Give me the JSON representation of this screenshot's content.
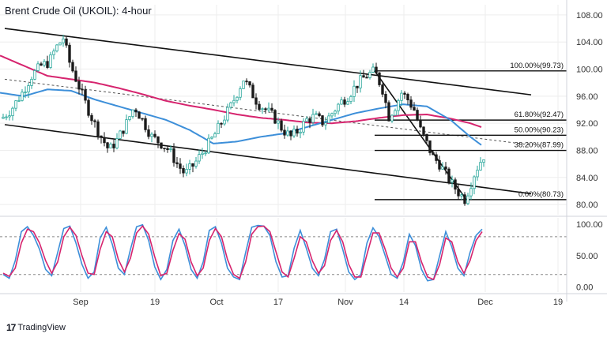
{
  "header": {
    "title": "Brent Crude Oil (UKOIL): 4-hour"
  },
  "footer": {
    "brand": "TradingView"
  },
  "colors": {
    "up": "#26a69a",
    "down": "#1a1a1a",
    "candle_body_up": "#ffffff",
    "sma_fast": "#3d8fd9",
    "sma_slow": "#d6246e",
    "stoch_k": "#3d8fd9",
    "stoch_d": "#d6246e",
    "trend": "#111111",
    "fib": "#111111",
    "grid": "#eeeeee",
    "axis_text": "#333333"
  },
  "chart_data": [
    {
      "type": "candlestick",
      "title": "Brent Crude Oil (UKOIL): 4-hour",
      "ylim": [
        78.5,
        109.5
      ],
      "y_ticks": [
        "108.00",
        "104.00",
        "100.00",
        "96.00",
        "92.00",
        "88.00",
        "84.00",
        "80.00"
      ],
      "x_ticks": [
        "Sep",
        "19",
        "Oct",
        "17",
        "Nov",
        "14",
        "Dec",
        "19"
      ],
      "grid": true,
      "price_path": [
        [
          0,
          92.5
        ],
        [
          14,
          94
        ],
        [
          28,
          96.5
        ],
        [
          40,
          99
        ],
        [
          52,
          100.5
        ],
        [
          62,
          101
        ],
        [
          70,
          103
        ],
        [
          80,
          104.6
        ],
        [
          88,
          101
        ],
        [
          98,
          98
        ],
        [
          108,
          95
        ],
        [
          118,
          92.3
        ],
        [
          128,
          90
        ],
        [
          138,
          88
        ],
        [
          148,
          89.5
        ],
        [
          160,
          92
        ],
        [
          170,
          94.5
        ],
        [
          180,
          92.5
        ],
        [
          192,
          90
        ],
        [
          204,
          89
        ],
        [
          214,
          88
        ],
        [
          224,
          86
        ],
        [
          234,
          84.5
        ],
        [
          246,
          86
        ],
        [
          258,
          88
        ],
        [
          270,
          90
        ],
        [
          282,
          92.5
        ],
        [
          292,
          94.5
        ],
        [
          300,
          96.5
        ],
        [
          308,
          98.5
        ],
        [
          316,
          97
        ],
        [
          326,
          95
        ],
        [
          336,
          94
        ],
        [
          346,
          93
        ],
        [
          358,
          91
        ],
        [
          368,
          90
        ],
        [
          378,
          91
        ],
        [
          388,
          92.5
        ],
        [
          398,
          93
        ],
        [
          410,
          92
        ],
        [
          420,
          93.5
        ],
        [
          430,
          95
        ],
        [
          440,
          96
        ],
        [
          450,
          97.5
        ],
        [
          458,
          98.5
        ],
        [
          466,
          99.2
        ],
        [
          474,
          99.7
        ],
        [
          484,
          97
        ],
        [
          492,
          93
        ],
        [
          500,
          94.5
        ],
        [
          508,
          96.5
        ],
        [
          516,
          95.5
        ],
        [
          524,
          94
        ],
        [
          532,
          91
        ],
        [
          540,
          89
        ],
        [
          548,
          87
        ],
        [
          556,
          86
        ],
        [
          564,
          84.5
        ],
        [
          572,
          83
        ],
        [
          580,
          81.8
        ],
        [
          588,
          80.8
        ],
        [
          594,
          82.5
        ],
        [
          600,
          84.5
        ],
        [
          606,
          86
        ],
        [
          612,
          87.2
        ]
      ],
      "sma_fast_path": [
        [
          0,
          96.5
        ],
        [
          30,
          96
        ],
        [
          60,
          97
        ],
        [
          90,
          96.8
        ],
        [
          120,
          95.5
        ],
        [
          150,
          94.5
        ],
        [
          180,
          93.5
        ],
        [
          210,
          92.5
        ],
        [
          240,
          91
        ],
        [
          270,
          89
        ],
        [
          300,
          89.3
        ],
        [
          330,
          90
        ],
        [
          360,
          90.5
        ],
        [
          390,
          91.5
        ],
        [
          420,
          92.5
        ],
        [
          450,
          93.5
        ],
        [
          480,
          94.2
        ],
        [
          510,
          94.8
        ],
        [
          540,
          94.5
        ],
        [
          570,
          92.5
        ],
        [
          595,
          90
        ],
        [
          610,
          88.7
        ]
      ],
      "sma_slow_path": [
        [
          0,
          102
        ],
        [
          30,
          100.5
        ],
        [
          60,
          99
        ],
        [
          90,
          98.5
        ],
        [
          120,
          98
        ],
        [
          150,
          97.2
        ],
        [
          180,
          96.3
        ],
        [
          210,
          95.3
        ],
        [
          240,
          94.6
        ],
        [
          270,
          94
        ],
        [
          300,
          93.3
        ],
        [
          330,
          92.8
        ],
        [
          360,
          92.5
        ],
        [
          390,
          92.1
        ],
        [
          420,
          92
        ],
        [
          450,
          92.3
        ],
        [
          480,
          92.8
        ],
        [
          510,
          93.2
        ],
        [
          540,
          93.3
        ],
        [
          570,
          92.7
        ],
        [
          595,
          92
        ],
        [
          610,
          91.4
        ]
      ],
      "trendlines": [
        {
          "name": "channel-upper",
          "from": [
            6,
            106
          ],
          "to": [
            672,
            96.2
          ],
          "style": "solid"
        },
        {
          "name": "channel-lower",
          "from": [
            6,
            91.8
          ],
          "to": [
            672,
            81.6
          ],
          "style": "solid"
        },
        {
          "name": "channel-mid",
          "from": [
            6,
            98.5
          ],
          "to": [
            672,
            88.8
          ],
          "style": "dashed"
        },
        {
          "name": "fib-diagonal",
          "from": [
            474,
            99.73
          ],
          "to": [
            590,
            80.73
          ],
          "style": "solid"
        }
      ],
      "fibonacci": {
        "x_start": 474,
        "x_end": 717,
        "levels": [
          {
            "label": "100.00%(99.73)",
            "value": 99.73
          },
          {
            "label": "61.80%(92.47)",
            "value": 92.47
          },
          {
            "label": "50.00%(90.23)",
            "value": 90.23
          },
          {
            "label": "38.20%(87.99)",
            "value": 87.99
          },
          {
            "label": "0.00%(80.73)",
            "value": 80.73
          }
        ]
      }
    },
    {
      "type": "line",
      "title": "",
      "ylim": [
        -8,
        110
      ],
      "y_ticks": [
        "100.00",
        "50.00",
        "0.00"
      ],
      "y_tick_values": [
        100,
        50,
        0
      ],
      "dashed_levels": [
        80,
        20
      ],
      "series": [
        {
          "key": "stoch_k",
          "values": [
            20,
            14,
            42,
            88,
            96,
            82,
            60,
            28,
            18,
            55,
            93,
            97,
            70,
            36,
            14,
            24,
            78,
            95,
            68,
            30,
            20,
            60,
            96,
            99,
            74,
            32,
            12,
            28,
            74,
            92,
            66,
            28,
            14,
            40,
            90,
            96,
            70,
            30,
            16,
            12,
            55,
            95,
            98,
            97,
            82,
            40,
            16,
            18,
            62,
            90,
            62,
            30,
            18,
            44,
            88,
            92,
            60,
            24,
            12,
            20,
            70,
            94,
            80,
            50,
            20,
            14,
            40,
            84,
            66,
            28,
            10,
            12,
            50,
            88,
            64,
            30,
            18,
            55,
            82,
            92
          ]
        },
        {
          "key": "stoch_d",
          "values": [
            22,
            17,
            30,
            70,
            92,
            88,
            70,
            42,
            22,
            40,
            80,
            95,
            82,
            50,
            22,
            20,
            60,
            88,
            80,
            44,
            24,
            46,
            86,
            97,
            84,
            48,
            18,
            22,
            58,
            85,
            76,
            40,
            18,
            30,
            74,
            93,
            80,
            44,
            20,
            14,
            40,
            84,
            96,
            97,
            88,
            56,
            24,
            16,
            46,
            80,
            72,
            42,
            22,
            34,
            74,
            90,
            72,
            36,
            16,
            16,
            52,
            86,
            86,
            60,
            30,
            16,
            30,
            72,
            72,
            40,
            16,
            12,
            36,
            78,
            72,
            40,
            22,
            42,
            74,
            88
          ]
        }
      ]
    }
  ]
}
